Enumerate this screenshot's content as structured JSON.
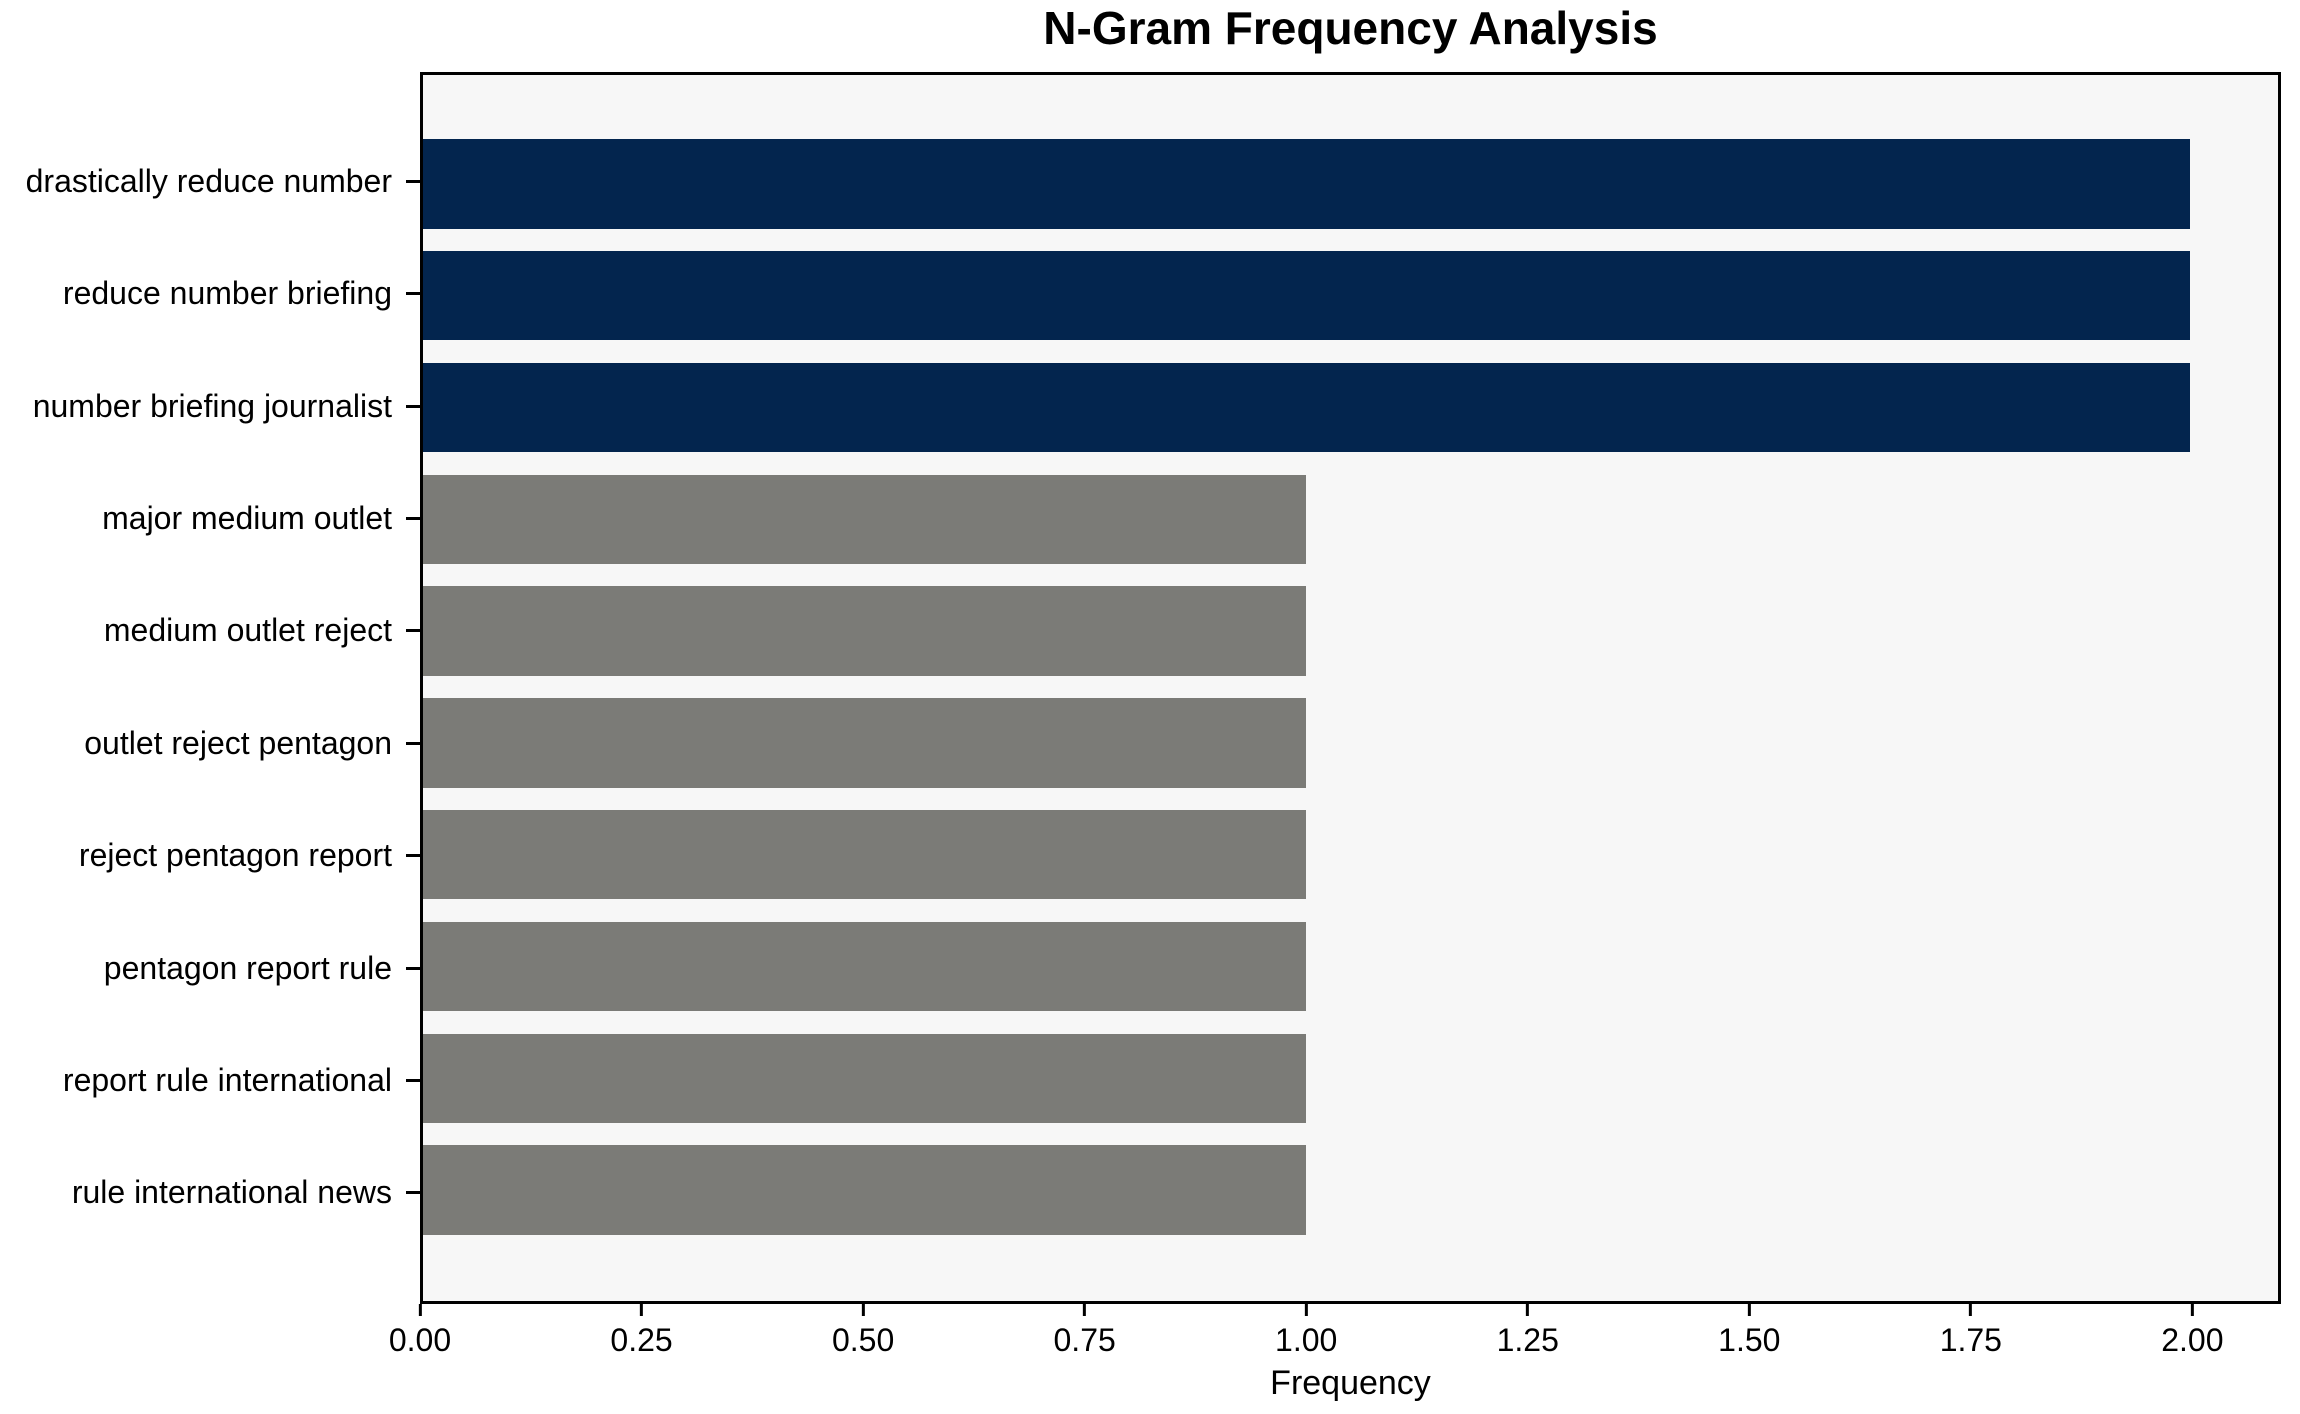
{
  "chart_data": {
    "type": "bar",
    "orientation": "horizontal",
    "title": "N-Gram Frequency Analysis",
    "xlabel": "Frequency",
    "ylabel": "",
    "categories": [
      "drastically reduce number",
      "reduce number briefing",
      "number briefing journalist",
      "major medium outlet",
      "medium outlet reject",
      "outlet reject pentagon",
      "reject pentagon report",
      "pentagon report rule",
      "report rule international",
      "rule international news"
    ],
    "values": [
      2,
      2,
      2,
      1,
      1,
      1,
      1,
      1,
      1,
      1
    ],
    "bar_colors": [
      "#03254e",
      "#03254e",
      "#03254e",
      "#7b7b77",
      "#7b7b77",
      "#7b7b77",
      "#7b7b77",
      "#7b7b77",
      "#7b7b77",
      "#7b7b77"
    ],
    "xlim": [
      0,
      2.1
    ],
    "xtick_labels": [
      "0.00",
      "0.25",
      "0.50",
      "0.75",
      "1.00",
      "1.25",
      "1.50",
      "1.75",
      "2.00"
    ],
    "grid": false,
    "legend_position": "none",
    "bar_height_fraction": 0.8,
    "colors": {
      "highlight": "#03254e",
      "default": "#7b7b77",
      "plot_background": "#f7f7f7",
      "figure_background": "#ffffff",
      "spine": "#000000",
      "text": "#000000"
    }
  }
}
